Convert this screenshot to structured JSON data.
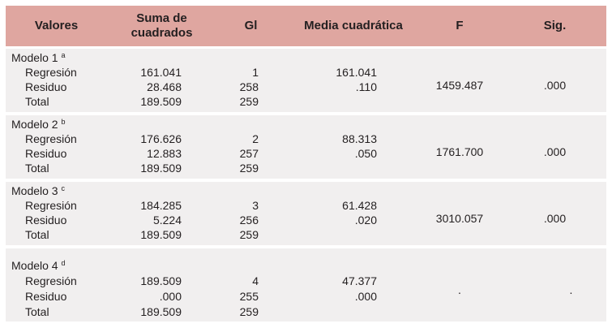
{
  "headers": {
    "valores": "Valores",
    "suma": "Suma de cuadrados",
    "gl": "Gl",
    "media": "Media cuadrática",
    "f": "F",
    "sig": "Sig."
  },
  "models": [
    {
      "label": "Modelo 1",
      "note": "a",
      "rows": [
        {
          "name": "Regresión",
          "suma": "161.041",
          "gl": "1",
          "media": "161.041"
        },
        {
          "name": "Residuo",
          "suma": "28.468",
          "gl": "258",
          "media": ".110"
        },
        {
          "name": "Total",
          "suma": "189.509",
          "gl": "259",
          "media": ""
        }
      ],
      "f": "1459.487",
      "sig": ".000"
    },
    {
      "label": "Modelo 2",
      "note": "b",
      "rows": [
        {
          "name": "Regresión",
          "suma": "176.626",
          "gl": "2",
          "media": "88.313"
        },
        {
          "name": "Residuo",
          "suma": "12.883",
          "gl": "257",
          "media": ".050"
        },
        {
          "name": "Total",
          "suma": "189.509",
          "gl": "259",
          "media": ""
        }
      ],
      "f": "1761.700",
      "sig": ".000"
    },
    {
      "label": "Modelo 3",
      "note": "c",
      "rows": [
        {
          "name": "Regresión",
          "suma": "184.285",
          "gl": "3",
          "media": "61.428"
        },
        {
          "name": "Residuo",
          "suma": "5.224",
          "gl": "256",
          "media": ".020"
        },
        {
          "name": "Total",
          "suma": "189.509",
          "gl": "259",
          "media": ""
        }
      ],
      "f": "3010.057",
      "sig": ".000"
    },
    {
      "label": "Modelo 4",
      "note": "d",
      "rows": [
        {
          "name": "Regresión",
          "suma": "189.509",
          "gl": "4",
          "media": "47.377"
        },
        {
          "name": "Residuo",
          "suma": ".000",
          "gl": "255",
          "media": ".000"
        },
        {
          "name": "Total",
          "suma": "189.509",
          "gl": "259",
          "media": ""
        }
      ],
      "f": ".",
      "sig": "."
    }
  ]
}
